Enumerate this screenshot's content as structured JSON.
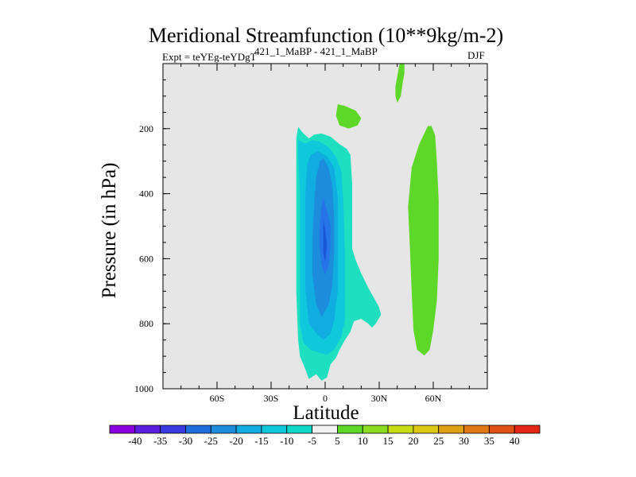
{
  "chart_data": {
    "type": "contour",
    "title": "Meridional Streamfunction (10**9kg/m-2)",
    "subtitle_left": "Expt = teYEg-teYDgT",
    "subtitle_center": "421_1_MaBP - 421_1_MaBP",
    "subtitle_right": "DJF",
    "xlabel": "Latitude",
    "ylabel": "Pressure (in hPa)",
    "xlim": [
      -90,
      90
    ],
    "ylim": [
      1000,
      0
    ],
    "x_ticks": [
      {
        "value": -60,
        "label": "60S"
      },
      {
        "value": -30,
        "label": "30S"
      },
      {
        "value": 0,
        "label": "0"
      },
      {
        "value": 30,
        "label": "30N"
      },
      {
        "value": 60,
        "label": "60N"
      }
    ],
    "y_ticks": [
      {
        "value": 200,
        "label": "200"
      },
      {
        "value": 400,
        "label": "400"
      },
      {
        "value": 600,
        "label": "600"
      },
      {
        "value": 800,
        "label": "800"
      },
      {
        "value": 1000,
        "label": "1000"
      }
    ],
    "background_color": "#e6e6e6",
    "colorbar": {
      "levels": [
        "-40",
        "-35",
        "-30",
        "-25",
        "-20",
        "-15",
        "-10",
        "-5",
        "5",
        "10",
        "15",
        "20",
        "25",
        "30",
        "35",
        "40"
      ],
      "colors": [
        "#8a00e0",
        "#5c1ee0",
        "#3a3ae0",
        "#1e6ee0",
        "#1e8cdc",
        "#10aee0",
        "#10c8dc",
        "#10d8c8",
        "#f0f0f0",
        "#5ed828",
        "#8adc20",
        "#c8dc14",
        "#dcc814",
        "#e0a014",
        "#e07814",
        "#e05014",
        "#e02814"
      ]
    },
    "contours": [
      {
        "name": "neg-5",
        "level": "-5",
        "color": "#1ee0c0",
        "points": [
          [
            -15,
            195
          ],
          [
            -12,
            215
          ],
          [
            -9,
            230
          ],
          [
            -6,
            218
          ],
          [
            -2,
            215
          ],
          [
            3,
            225
          ],
          [
            8,
            248
          ],
          [
            12,
            262
          ],
          [
            14,
            280
          ],
          [
            15,
            370
          ],
          [
            15,
            570
          ],
          [
            17,
            605
          ],
          [
            20,
            645
          ],
          [
            24,
            690
          ],
          [
            27,
            720
          ],
          [
            30,
            750
          ],
          [
            31,
            772
          ],
          [
            28,
            800
          ],
          [
            26,
            812
          ],
          [
            24,
            800
          ],
          [
            20,
            785
          ],
          [
            16,
            792
          ],
          [
            14,
            825
          ],
          [
            11,
            850
          ],
          [
            8,
            880
          ],
          [
            6,
            905
          ],
          [
            3,
            925
          ],
          [
            1,
            965
          ],
          [
            -2,
            975
          ],
          [
            -5,
            955
          ],
          [
            -9,
            970
          ],
          [
            -11,
            940
          ],
          [
            -14,
            900
          ],
          [
            -15,
            850
          ],
          [
            -16,
            700
          ],
          [
            -16,
            400
          ],
          [
            -16,
            230
          ]
        ]
      },
      {
        "name": "neg-10",
        "level": "-10",
        "color": "#10c8dc",
        "points": [
          [
            -15,
            235
          ],
          [
            -11,
            245
          ],
          [
            -7,
            235
          ],
          [
            -3,
            240
          ],
          [
            2,
            258
          ],
          [
            6,
            285
          ],
          [
            9,
            330
          ],
          [
            10,
            420
          ],
          [
            11,
            580
          ],
          [
            11,
            700
          ],
          [
            11,
            790
          ],
          [
            9,
            840
          ],
          [
            5,
            880
          ],
          [
            1,
            895
          ],
          [
            -3,
            890
          ],
          [
            -8,
            880
          ],
          [
            -12,
            860
          ],
          [
            -14,
            800
          ],
          [
            -14,
            600
          ],
          [
            -14,
            400
          ],
          [
            -15,
            280
          ]
        ]
      },
      {
        "name": "neg-15",
        "level": "-15",
        "color": "#10aee0",
        "points": [
          [
            -8,
            280
          ],
          [
            -4,
            270
          ],
          [
            1,
            285
          ],
          [
            5,
            320
          ],
          [
            7,
            410
          ],
          [
            7,
            570
          ],
          [
            7,
            700
          ],
          [
            5,
            790
          ],
          [
            3,
            830
          ],
          [
            -1,
            850
          ],
          [
            -5,
            830
          ],
          [
            -9,
            800
          ],
          [
            -11,
            700
          ],
          [
            -11,
            550
          ],
          [
            -11,
            400
          ],
          [
            -10,
            310
          ]
        ]
      },
      {
        "name": "neg-20",
        "level": "-20",
        "color": "#1e8cdc",
        "points": [
          [
            -3,
            300
          ],
          [
            -1,
            290
          ],
          [
            2,
            320
          ],
          [
            4,
            380
          ],
          [
            5,
            470
          ],
          [
            5,
            580
          ],
          [
            4,
            680
          ],
          [
            2,
            740
          ],
          [
            -2,
            780
          ],
          [
            -5,
            740
          ],
          [
            -7,
            650
          ],
          [
            -7,
            530
          ],
          [
            -6,
            420
          ],
          [
            -5,
            350
          ]
        ]
      },
      {
        "name": "neg-25",
        "level": "-25",
        "color": "#2674e8",
        "points": [
          [
            -1,
            410
          ],
          [
            1,
            450
          ],
          [
            3,
            500
          ],
          [
            3,
            560
          ],
          [
            2,
            620
          ],
          [
            0,
            650
          ],
          [
            -2,
            620
          ],
          [
            -3,
            560
          ],
          [
            -3,
            490
          ],
          [
            -2,
            440
          ]
        ]
      },
      {
        "name": "neg-30",
        "level": "-30",
        "color": "#1a56d8",
        "points": [
          [
            -1,
            480
          ],
          [
            0,
            510
          ],
          [
            1,
            560
          ],
          [
            0,
            610
          ],
          [
            -1,
            580
          ]
        ]
      },
      {
        "name": "pos-5-right",
        "level": "5",
        "color": "#5ed828",
        "points": [
          [
            57,
            192
          ],
          [
            59,
            192
          ],
          [
            61,
            220
          ],
          [
            62,
            300
          ],
          [
            63,
            420
          ],
          [
            63,
            600
          ],
          [
            62,
            730
          ],
          [
            60,
            820
          ],
          [
            58,
            880
          ],
          [
            55,
            898
          ],
          [
            51,
            880
          ],
          [
            49,
            820
          ],
          [
            48,
            700
          ],
          [
            47,
            560
          ],
          [
            46,
            440
          ],
          [
            48,
            320
          ],
          [
            52,
            250
          ]
        ]
      },
      {
        "name": "pos-5-top",
        "level": "5",
        "color": "#5ed828",
        "points": [
          [
            42,
            -20
          ],
          [
            44,
            -10
          ],
          [
            44,
            30
          ],
          [
            43,
            60
          ],
          [
            42,
            100
          ],
          [
            40,
            120
          ],
          [
            39,
            100
          ],
          [
            39,
            70
          ]
        ]
      },
      {
        "name": "pos-5-blob",
        "level": "5",
        "color": "#5ed828",
        "points": [
          [
            7,
            125
          ],
          [
            11,
            130
          ],
          [
            17,
            145
          ],
          [
            20,
            168
          ],
          [
            18,
            190
          ],
          [
            13,
            200
          ],
          [
            8,
            190
          ],
          [
            6,
            160
          ]
        ]
      }
    ]
  }
}
